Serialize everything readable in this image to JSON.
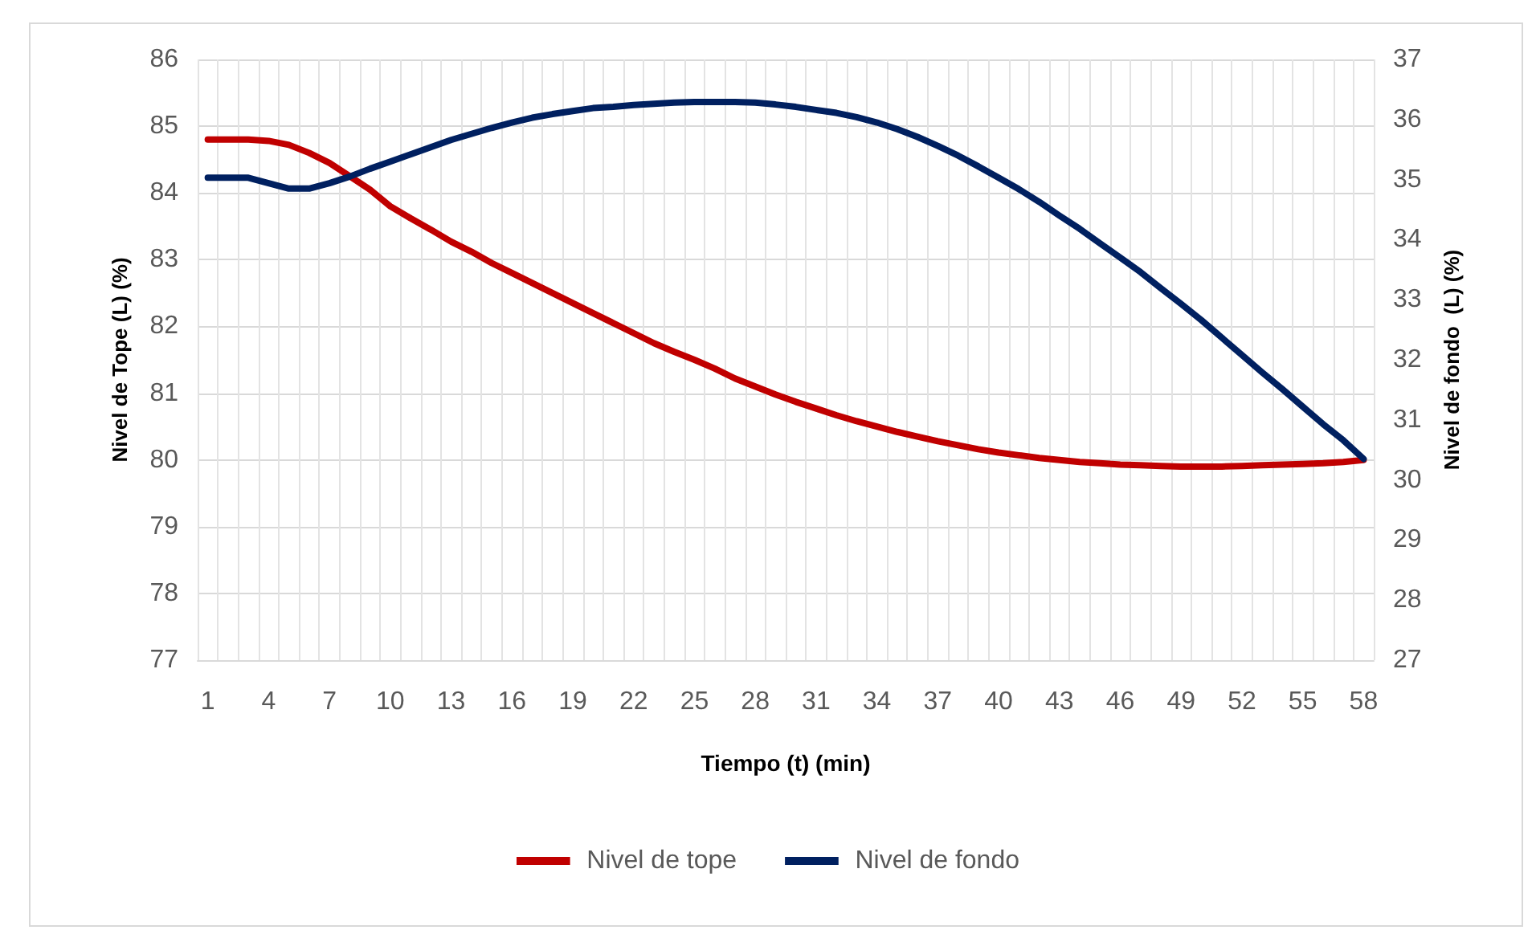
{
  "chart_data": {
    "type": "line",
    "xlabel": "Tiempo (t) (min)",
    "ylabel": "Nivel de Tope (L) (%)",
    "y2label": "Nivel de fondo  (L) (%)",
    "categories": [
      "1",
      null,
      null,
      "4",
      null,
      null,
      "7",
      null,
      null,
      "10",
      null,
      null,
      "13",
      null,
      null,
      "16",
      null,
      null,
      "19",
      null,
      null,
      "22",
      null,
      null,
      "25",
      null,
      null,
      "28",
      null,
      null,
      "31",
      null,
      null,
      "34",
      null,
      null,
      "37",
      null,
      null,
      "40",
      null,
      null,
      "43",
      null,
      null,
      "46",
      null,
      null,
      "49",
      null,
      null,
      "52",
      null,
      null,
      "55",
      null,
      null,
      "58"
    ],
    "series": [
      {
        "name": "Nivel de tope",
        "color": "#c00000",
        "values": [
          84.8,
          84.8,
          84.8,
          84.78,
          84.72,
          84.6,
          84.45,
          84.25,
          84.05,
          83.8,
          83.62,
          83.45,
          83.27,
          83.12,
          82.95,
          82.8,
          82.65,
          82.5,
          82.35,
          82.2,
          82.05,
          81.9,
          81.75,
          81.62,
          81.5,
          81.37,
          81.22,
          81.1,
          80.98,
          80.87,
          80.77,
          80.67,
          80.58,
          80.5,
          80.42,
          80.35,
          80.28,
          80.22,
          80.16,
          80.11,
          80.07,
          80.03,
          80.0,
          79.97,
          79.95,
          79.93,
          79.92,
          79.91,
          79.9,
          79.9,
          79.9,
          79.91,
          79.92,
          79.93,
          79.94,
          79.95,
          79.97,
          80.0
        ]
      },
      {
        "name": "Nivel de fondo",
        "color": "#002060",
        "axis": "y2",
        "values": [
          35.03,
          35.03,
          35.03,
          34.94,
          34.85,
          34.85,
          34.94,
          35.05,
          35.18,
          35.3,
          35.42,
          35.54,
          35.66,
          35.76,
          35.86,
          35.95,
          36.03,
          36.09,
          36.14,
          36.19,
          36.21,
          36.24,
          36.26,
          36.28,
          36.29,
          36.29,
          36.29,
          36.28,
          36.25,
          36.21,
          36.16,
          36.11,
          36.04,
          35.95,
          35.84,
          35.71,
          35.56,
          35.4,
          35.22,
          35.03,
          34.84,
          34.63,
          34.4,
          34.18,
          33.94,
          33.7,
          33.46,
          33.19,
          32.93,
          32.66,
          32.37,
          32.08,
          31.79,
          31.51,
          31.22,
          30.93,
          30.66,
          30.35
        ]
      }
    ],
    "ylim": [
      77,
      86
    ],
    "yticks": [
      77,
      78,
      79,
      80,
      81,
      82,
      83,
      84,
      85,
      86
    ],
    "y2lim": [
      27,
      37
    ],
    "y2ticks": [
      27,
      28,
      29,
      30,
      31,
      32,
      33,
      34,
      35,
      36,
      37
    ],
    "grid": true,
    "legend": "bottom",
    "marker": "none",
    "line_style": "solid"
  }
}
